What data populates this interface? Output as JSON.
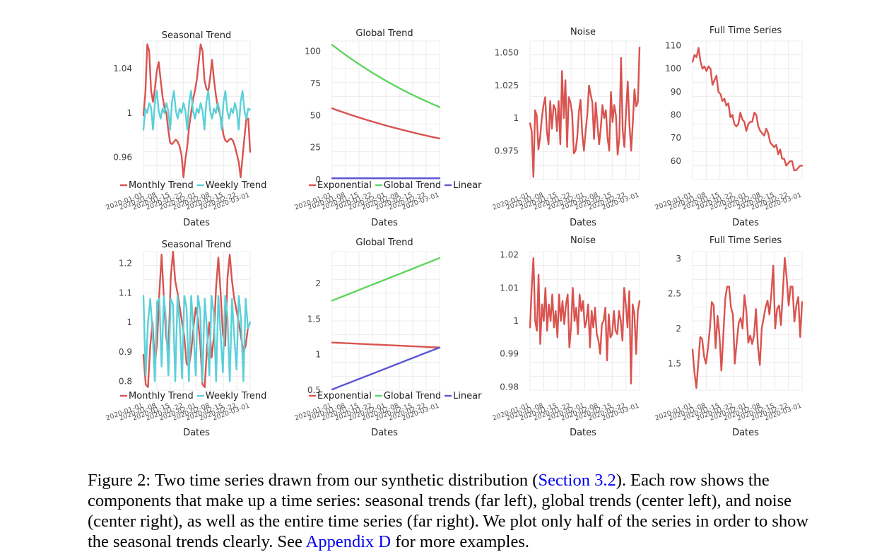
{
  "colors": {
    "red": "#d9534f",
    "cyan": "#5bd0d8",
    "green": "#5ed65e",
    "blue": "#5b55d6"
  },
  "x_label": "Dates",
  "date_ticks": [
    "2020-01-01",
    "2020-01-08",
    "2020-01-15",
    "2020-01-22",
    "2020-02-01",
    "2020-02-08",
    "2020-02-15",
    "2020-02-22",
    "2020-03-01"
  ],
  "chart_data": [
    {
      "id": "r1c1",
      "type": "line",
      "title": "Seasonal Trend",
      "xlabel": "Dates",
      "ylim": [
        0.94,
        1.065
      ],
      "yticks": [
        {
          "v": 0.96,
          "label": "0.96"
        },
        {
          "v": 1.0,
          "label": "1"
        },
        {
          "v": 1.04,
          "label": "1.04"
        }
      ],
      "legend": [
        "Monthly Trend",
        "Weekly Trend"
      ],
      "series": [
        {
          "name": "Monthly Trend",
          "color": "red",
          "values": [
            0.998,
            1.018,
            1.062,
            1.056,
            1.02,
            1.01,
            1.022,
            1.038,
            1.046,
            1.03,
            1.015,
            1.005,
            1.0,
            0.985,
            0.973,
            0.972,
            0.974,
            0.976,
            0.974,
            0.97,
            0.962,
            0.942,
            0.958,
            0.97,
            0.988,
            1.0,
            1.012,
            1.02,
            1.03,
            1.046,
            1.062,
            1.056,
            1.03,
            1.022,
            1.02,
            1.032,
            1.048,
            1.03,
            1.016,
            1.005,
            1.0,
            0.992,
            0.98,
            0.975,
            0.974,
            0.976,
            0.977,
            0.975,
            0.97,
            0.963,
            0.956,
            0.942,
            0.96,
            0.978,
            0.995,
            0.995,
            0.965
          ]
        },
        {
          "name": "Weekly Trend",
          "color": "cyan",
          "values": [
            0.985,
            1.004,
            1.0,
            1.009,
            1.005,
            0.985,
            1.01,
            1.02,
            1.002,
            0.995,
            1.004,
            1.0,
            1.009,
            1.002,
            0.985,
            1.01,
            1.02,
            1.002,
            0.995,
            1.004,
            1.0,
            1.009,
            1.002,
            0.985,
            1.01,
            1.02,
            1.002,
            0.995,
            1.004,
            1.0,
            1.009,
            1.002,
            0.985,
            1.01,
            1.02,
            1.002,
            0.995,
            1.004,
            1.0,
            1.009,
            1.002,
            0.985,
            1.01,
            1.02,
            1.002,
            0.995,
            1.004,
            1.0,
            1.009,
            1.002,
            0.985,
            1.01,
            1.02,
            1.002,
            0.995,
            1.004,
            1.003
          ]
        }
      ]
    },
    {
      "id": "r1c2",
      "type": "line",
      "title": "Global Trend",
      "xlabel": "Dates",
      "ylim": [
        0,
        108
      ],
      "yticks": [
        {
          "v": 0,
          "label": "0"
        },
        {
          "v": 25,
          "label": "25"
        },
        {
          "v": 50,
          "label": "50"
        },
        {
          "v": 75,
          "label": "75"
        },
        {
          "v": 100,
          "label": "100"
        }
      ],
      "legend": [
        "Exponential",
        "Global Trend",
        "Linear"
      ],
      "series": [
        {
          "name": "Exponential",
          "color": "red",
          "start": 55.5,
          "end": 32.0,
          "curve": "exp"
        },
        {
          "name": "Global Trend",
          "color": "green",
          "start": 105.0,
          "end": 56.5,
          "curve": "exp"
        },
        {
          "name": "Linear",
          "color": "blue",
          "start": 1.0,
          "end": 1.0,
          "curve": "lin"
        }
      ]
    },
    {
      "id": "r1c3",
      "type": "line",
      "title": "Noise",
      "xlabel": "Dates",
      "ylim": [
        0.953,
        1.059
      ],
      "yticks": [
        {
          "v": 0.975,
          "label": "0.975"
        },
        {
          "v": 1.0,
          "label": "1"
        },
        {
          "v": 1.025,
          "label": "1.025"
        },
        {
          "v": 1.05,
          "label": "1.050"
        }
      ],
      "legend": [],
      "series": [
        {
          "name": "Noise",
          "color": "red",
          "values": [
            0.996,
            0.99,
            0.955,
            1.006,
            1.002,
            0.976,
            0.985,
            1.0,
            1.01,
            1.016,
            0.99,
            0.98,
            1.013,
            0.992,
            1.01,
            1.007,
            0.99,
            1.013,
            0.98,
            1.036,
            1.0,
            1.029,
            0.978,
            1.016,
            1.012,
            1.004,
            0.973,
            0.975,
            0.985,
            1.005,
            1.014,
            0.988,
            0.975,
            0.99,
            1.003,
            1.025,
            1.018,
            1.012,
            0.984,
            1.012,
            0.995,
            0.98,
            0.993,
            1.01,
            1.0,
            1.006,
            0.985,
            0.975,
            1.02,
            0.997,
            1.01,
            1.002,
            0.972,
            0.985,
            1.046,
            0.99,
            0.978,
            1.005,
            1.028,
            0.995,
            0.975,
            0.997,
            1.022,
            1.009,
            1.012,
            1.054
          ]
        }
      ]
    },
    {
      "id": "r1c4",
      "type": "line",
      "title": "Full Time Series",
      "xlabel": "Dates",
      "ylim": [
        52,
        112
      ],
      "yticks": [
        {
          "v": 60,
          "label": "60"
        },
        {
          "v": 70,
          "label": "70"
        },
        {
          "v": 80,
          "label": "80"
        },
        {
          "v": 90,
          "label": "90"
        },
        {
          "v": 100,
          "label": "100"
        },
        {
          "v": 110,
          "label": "110"
        }
      ],
      "legend": [],
      "series": [
        {
          "name": "Full Time Series",
          "color": "red",
          "values": [
            103,
            106,
            105,
            109,
            103,
            100,
            101,
            99,
            101,
            100,
            93,
            95,
            97,
            90,
            89,
            86,
            87,
            84,
            85,
            79,
            80,
            76,
            75,
            76,
            81,
            78,
            77,
            73,
            76,
            77,
            77,
            81,
            80,
            75,
            73,
            72,
            71,
            74,
            72,
            68,
            67,
            66,
            67,
            63,
            65,
            61,
            61,
            58,
            59,
            60,
            60,
            56,
            56,
            57,
            58,
            58
          ]
        }
      ]
    },
    {
      "id": "r2c1",
      "type": "line",
      "title": "Seasonal Trend",
      "xlabel": "Dates",
      "ylim": [
        0.77,
        1.24
      ],
      "yticks": [
        {
          "v": 0.8,
          "label": "0.8"
        },
        {
          "v": 0.9,
          "label": "0.9"
        },
        {
          "v": 1.0,
          "label": "1"
        },
        {
          "v": 1.1,
          "label": "1.1"
        },
        {
          "v": 1.2,
          "label": "1.2"
        }
      ],
      "legend": [
        "Monthly Trend",
        "Weekly Trend"
      ],
      "series": [
        {
          "name": "Monthly Trend",
          "color": "red",
          "values": [
            0.89,
            0.79,
            0.78,
            0.92,
            1.0,
            0.86,
            0.93,
            1.1,
            1.23,
            1.08,
            0.95,
            0.9,
            1.15,
            1.24,
            1.14,
            1.1,
            1.05,
            1.0,
            0.95,
            0.86,
            0.85,
            0.9,
            0.98,
            1.05,
            1.01,
            0.93,
            0.79,
            0.78,
            0.92,
            1.0,
            0.88,
            0.95,
            1.12,
            1.22,
            1.1,
            0.96,
            0.92,
            1.15,
            1.23,
            1.14,
            1.08,
            1.04,
            1.0,
            0.95,
            0.9,
            0.92,
            0.98,
            1.0
          ]
        },
        {
          "name": "Weekly Trend",
          "color": "cyan",
          "values": [
            1.09,
            0.82,
            1.0,
            1.08,
            0.97,
            0.8,
            1.07,
            1.08,
            0.85,
            1.09,
            1.0,
            0.82,
            1.08,
            1.06,
            0.8,
            1.09,
            0.99,
            0.81,
            1.09,
            1.05,
            0.8,
            1.09,
            0.98,
            0.82,
            1.09,
            1.04,
            0.8,
            1.08,
            0.97,
            0.82,
            1.09,
            1.03,
            0.8,
            1.09,
            0.96,
            0.83,
            1.09,
            1.02,
            0.8,
            1.08,
            0.95,
            0.84,
            1.09,
            1.01,
            0.8,
            1.08,
            0.98,
            1.0
          ]
        }
      ]
    },
    {
      "id": "r2c2",
      "type": "line",
      "title": "Global Trend",
      "xlabel": "Dates",
      "ylim": [
        0.5,
        2.45
      ],
      "yticks": [
        {
          "v": 0.5,
          "label": "0.5"
        },
        {
          "v": 1.0,
          "label": "1"
        },
        {
          "v": 1.5,
          "label": "1.5"
        },
        {
          "v": 2.0,
          "label": "2"
        }
      ],
      "legend": [
        "Exponential",
        "Global Trend",
        "Linear"
      ],
      "series": [
        {
          "name": "Exponential",
          "color": "red",
          "start": 1.17,
          "end": 1.1,
          "curve": "lin"
        },
        {
          "name": "Global Trend",
          "color": "green",
          "start": 1.76,
          "end": 2.36,
          "curve": "lin"
        },
        {
          "name": "Linear",
          "color": "blue",
          "start": 0.51,
          "end": 1.1,
          "curve": "lin"
        }
      ]
    },
    {
      "id": "r2c3",
      "type": "line",
      "title": "Noise",
      "xlabel": "Dates",
      "ylim": [
        0.979,
        1.021
      ],
      "yticks": [
        {
          "v": 0.98,
          "label": "0.98"
        },
        {
          "v": 0.99,
          "label": "0.99"
        },
        {
          "v": 1.0,
          "label": "1"
        },
        {
          "v": 1.01,
          "label": "1.01"
        },
        {
          "v": 1.02,
          "label": "1.02"
        }
      ],
      "legend": [],
      "series": [
        {
          "name": "Noise",
          "color": "red",
          "values": [
            0.998,
            1.01,
            1.019,
            1.0,
            0.997,
            1.014,
            0.993,
            1.005,
            1.0,
            1.01,
            0.997,
            1.005,
            1.0,
            1.008,
            0.998,
            1.003,
            0.995,
            1.008,
            1.0,
            1.006,
            0.999,
            1.005,
            1.008,
            0.992,
            0.998,
            1.01,
            1.0,
            1.004,
            0.996,
            1.008,
            1.003,
            1.006,
            0.998,
            1.0,
            1.005,
            0.992,
            1.003,
            0.998,
            1.004,
            0.996,
            0.994,
            0.99,
            0.999,
            1.0,
            1.004,
            0.988,
            1.002,
            0.995,
            0.996,
            1.003,
            0.997,
            0.996,
            1.003,
            1.0,
            0.994,
            1.01,
            1.005,
            0.998,
            1.009,
            0.981,
            1.005,
            1.002,
            0.99,
            1.003,
            1.006
          ]
        }
      ]
    },
    {
      "id": "r2c4",
      "type": "line",
      "title": "Full Time Series",
      "xlabel": "Dates",
      "ylim": [
        1.12,
        3.1
      ],
      "yticks": [
        {
          "v": 1.5,
          "label": "1.5"
        },
        {
          "v": 2.0,
          "label": "2"
        },
        {
          "v": 2.5,
          "label": "2.5"
        },
        {
          "v": 3.0,
          "label": "3"
        }
      ],
      "legend": [],
      "series": [
        {
          "name": "Full Time Series",
          "color": "red",
          "values": [
            1.7,
            1.37,
            1.15,
            1.52,
            1.88,
            1.85,
            1.6,
            1.5,
            1.72,
            2.0,
            2.38,
            2.33,
            1.72,
            2.18,
            1.9,
            1.4,
            1.9,
            2.42,
            2.6,
            2.6,
            2.3,
            2.2,
            1.5,
            1.8,
            2.08,
            2.15,
            2.0,
            2.48,
            2.25,
            1.8,
            1.9,
            1.78,
            1.9,
            2.28,
            1.75,
            1.48,
            2.0,
            2.15,
            2.3,
            2.4,
            2.2,
            2.5,
            2.9,
            2.0,
            2.28,
            2.33,
            2.05,
            2.53,
            3.01,
            2.72,
            2.33,
            2.6,
            2.6,
            2.1,
            2.33,
            2.45,
            1.88,
            2.38
          ]
        }
      ]
    }
  ],
  "caption": {
    "prefix": "Figure 2: Two time series drawn from our synthetic distribution (",
    "link1": "Section 3.2",
    "middle": "). Each row shows the components that make up a time series: seasonal trends (far left), global trends (center left), and noise (center right), as well as the entire time series (far right). We plot only half of the series in order to show the seasonal trends clearly. See ",
    "link2": "Appendix D",
    "suffix": " for more examples."
  }
}
